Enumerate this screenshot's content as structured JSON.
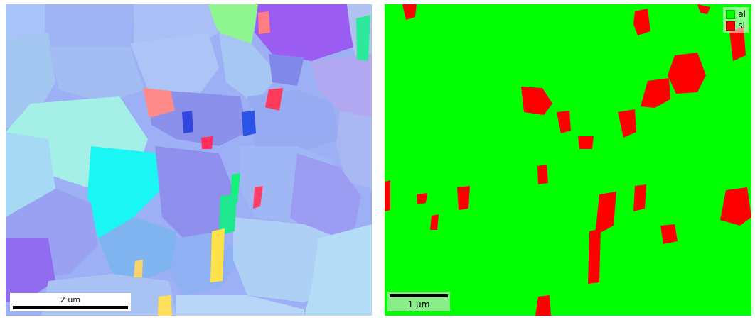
{
  "ipf_map": {
    "scalebar_label": "2 um"
  },
  "phase_map": {
    "scalebar_label": "1 µm",
    "legend": [
      {
        "label": "al",
        "color": "#00ff00"
      },
      {
        "label": "si",
        "color": "#ff0000"
      }
    ]
  }
}
